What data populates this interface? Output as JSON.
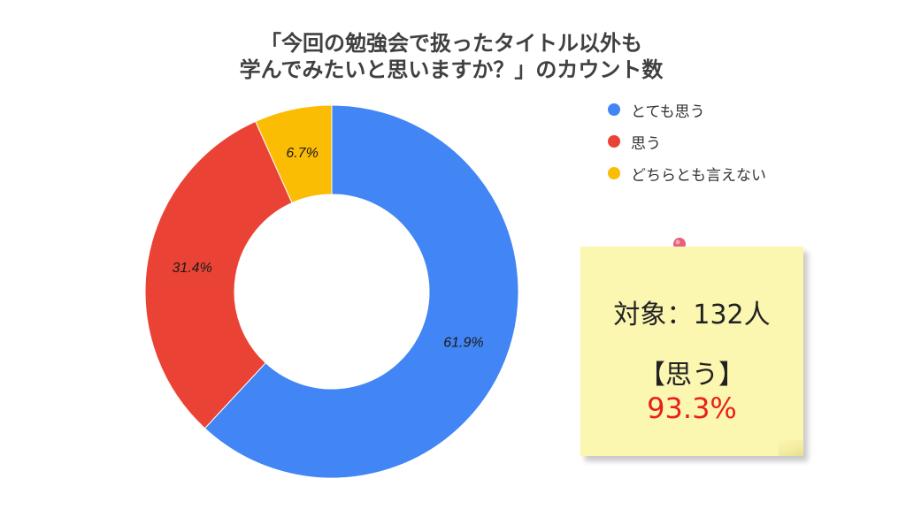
{
  "chart_data": {
    "type": "pie",
    "variant": "donut",
    "title": "「今回の勉強会で扱ったタイトル以外も\n学んでみたいと思いますか？」のカウント数",
    "categories": [
      "とても思う",
      "思う",
      "どちらとも言えない"
    ],
    "values": [
      61.9,
      31.4,
      6.7
    ],
    "value_labels": [
      "61.9%",
      "31.4%",
      "6.7%"
    ],
    "unit": "%",
    "colors": [
      "#4285f4",
      "#ea4335",
      "#fbbc04"
    ],
    "legend_position": "top-right"
  },
  "note": {
    "target_label": "対象：132人",
    "heading": "【思う】",
    "value": "93.3%",
    "value_color": "#e8201c",
    "background_color": "#fbf6b0",
    "pin_icon": "push-pin-icon"
  }
}
